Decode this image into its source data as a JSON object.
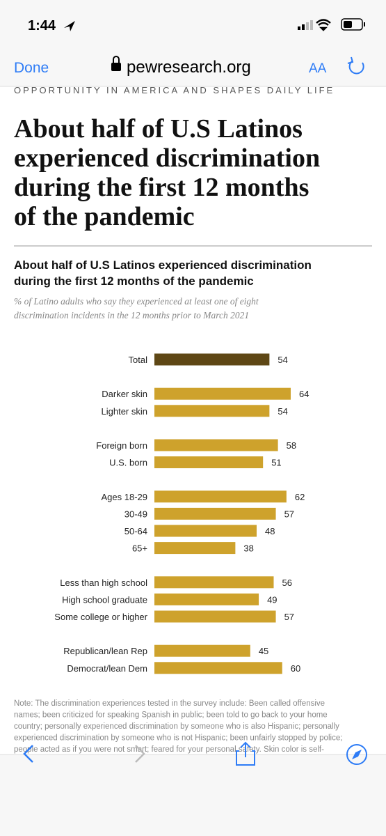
{
  "status_bar": {
    "time": "1:44"
  },
  "browser_bar": {
    "done": "Done",
    "url": "pewresearch.org",
    "text_size": "AA"
  },
  "article": {
    "kicker": "OPPORTUNITY IN AMERICA AND SHAPES DAILY LIFE",
    "headline": [
      "About half of U.S Latinos",
      "experienced discrimination",
      "during the first 12 months",
      "of the pandemic"
    ],
    "chart_data": {
      "type": "bar",
      "title": [
        "About half of U.S Latinos experienced discrimination",
        "during the first 12 months of the pandemic"
      ],
      "subtitle": [
        "% of Latino adults who say they experienced at least one of eight",
        "discrimination incidents in the 12 months prior to March 2021"
      ],
      "groups": [
        {
          "categories": [
            "Total"
          ],
          "values": [
            54
          ],
          "color": "#5e4715"
        },
        {
          "categories": [
            "Darker skin",
            "Lighter skin"
          ],
          "values": [
            64,
            54
          ],
          "color": "#cea22c"
        },
        {
          "categories": [
            "Foreign born",
            "U.S. born"
          ],
          "values": [
            58,
            51
          ],
          "color": "#cea22c"
        },
        {
          "categories": [
            "Ages 18-29",
            "30-49",
            "50-64",
            "65+"
          ],
          "values": [
            62,
            57,
            48,
            38
          ],
          "color": "#cea22c"
        },
        {
          "categories": [
            "Less than high school",
            "High school graduate",
            "Some college or higher"
          ],
          "values": [
            56,
            49,
            57
          ],
          "color": "#cea22c"
        },
        {
          "categories": [
            "Republican/lean Rep",
            "Democrat/lean Dem"
          ],
          "values": [
            45,
            60
          ],
          "color": "#cea22c"
        }
      ],
      "note": [
        "Note: The discrimination experiences tested in the survey include: Been called offensive",
        "names; been criticized for speaking Spanish in public; been told to go back to your home",
        "country; personally experienced discrimination by someone who is also Hispanic; personally",
        "experienced discrimination by someone who is not Hispanic; been unfairly stopped by police;",
        "people acted as if you were not smart; feared for your personal safety. Skin color is self-"
      ]
    }
  }
}
